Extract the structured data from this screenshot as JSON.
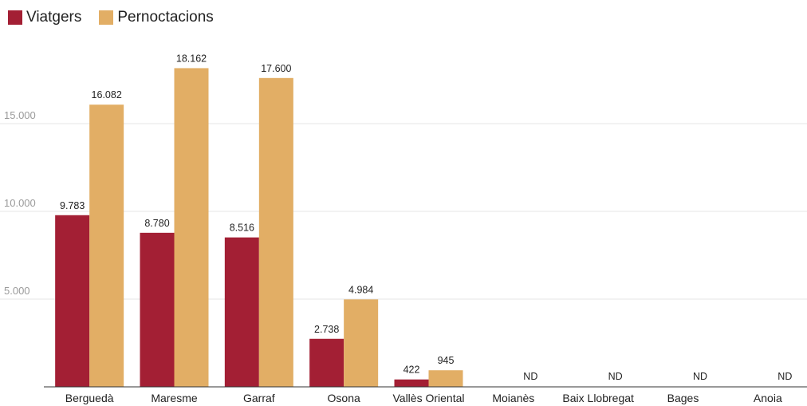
{
  "chart_data": {
    "type": "bar",
    "categories": [
      "Berguedà",
      "Maresme",
      "Garraf",
      "Osona",
      "Vallès Oriental",
      "Moianès",
      "Baix Llobregat",
      "Bages",
      "Anoia"
    ],
    "series": [
      {
        "name": "Viatgers",
        "color": "#a31f34",
        "values": [
          9783,
          8780,
          8516,
          2738,
          422,
          null,
          null,
          null,
          null
        ],
        "labels": [
          "9.783",
          "8.780",
          "8.516",
          "2.738",
          "422",
          "",
          "",
          "",
          ""
        ]
      },
      {
        "name": "Pernoctacions",
        "color": "#e2ae65",
        "values": [
          16082,
          18162,
          17600,
          4984,
          945,
          null,
          null,
          null,
          null
        ],
        "labels": [
          "16.082",
          "18.162",
          "17.600",
          "4.984",
          "945",
          "ND",
          "ND",
          "ND",
          "ND"
        ]
      }
    ],
    "ylim": [
      0,
      19000
    ],
    "yticks": [
      5000,
      10000,
      15000
    ],
    "ytick_labels": [
      "5.000",
      "10.000",
      "15.000"
    ],
    "grid": true,
    "legend_position": "top-left"
  }
}
